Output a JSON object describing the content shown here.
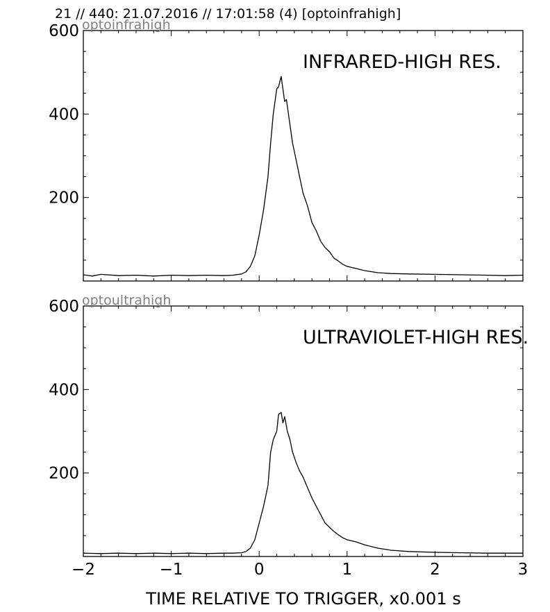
{
  "header": {
    "text": "21 // 440:   21.07.2016 // 17:01:58 (4)  [optoinfrahigh]"
  },
  "xlabel": "TIME RELATIVE TO TRIGGER,   x0.001 s",
  "chart_data": [
    {
      "type": "line",
      "id_label": "optoinfrahigh",
      "title": "INFRARED-HIGH RES.",
      "xlim": [
        -2,
        3
      ],
      "ylim": [
        0,
        600
      ],
      "yticks": [
        200,
        400,
        600
      ],
      "xticks": [
        -2,
        -1,
        0,
        1,
        2,
        3
      ],
      "series": [
        {
          "x": [
            -2.0,
            -1.9,
            -1.8,
            -1.6,
            -1.4,
            -1.2,
            -1.0,
            -0.8,
            -0.6,
            -0.4,
            -0.3,
            -0.2,
            -0.15,
            -0.1,
            -0.05,
            0.0,
            0.05,
            0.1,
            0.13,
            0.16,
            0.2,
            0.22,
            0.25,
            0.27,
            0.29,
            0.31,
            0.34,
            0.38,
            0.42,
            0.46,
            0.5,
            0.55,
            0.6,
            0.65,
            0.7,
            0.75,
            0.8,
            0.85,
            0.9,
            0.95,
            1.0,
            1.1,
            1.2,
            1.35,
            1.5,
            1.7,
            2.0,
            2.3,
            2.6,
            2.8,
            3.0
          ],
          "y": [
            15,
            12,
            16,
            13,
            14,
            12,
            14,
            13,
            14,
            13,
            14,
            17,
            22,
            35,
            60,
            110,
            170,
            250,
            330,
            400,
            460,
            465,
            490,
            460,
            430,
            435,
            390,
            330,
            290,
            250,
            210,
            180,
            140,
            120,
            95,
            80,
            70,
            55,
            48,
            40,
            35,
            30,
            25,
            20,
            18,
            17,
            16,
            15,
            14,
            13,
            14
          ]
        }
      ]
    },
    {
      "type": "line",
      "id_label": "optoultrahigh",
      "title": "ULTRAVIOLET-HIGH RES.",
      "xlim": [
        -2,
        3
      ],
      "ylim": [
        0,
        600
      ],
      "yticks": [
        200,
        400,
        600
      ],
      "xticks": [
        -2,
        -1,
        0,
        1,
        2,
        3
      ],
      "series": [
        {
          "x": [
            -2.0,
            -1.8,
            -1.6,
            -1.4,
            -1.2,
            -1.0,
            -0.8,
            -0.6,
            -0.4,
            -0.3,
            -0.2,
            -0.15,
            -0.1,
            -0.05,
            0.0,
            0.05,
            0.1,
            0.13,
            0.16,
            0.2,
            0.22,
            0.25,
            0.27,
            0.29,
            0.32,
            0.35,
            0.38,
            0.42,
            0.46,
            0.5,
            0.55,
            0.6,
            0.65,
            0.7,
            0.75,
            0.8,
            0.85,
            0.9,
            0.95,
            1.0,
            1.1,
            1.2,
            1.35,
            1.5,
            1.7,
            2.0,
            2.3,
            2.6,
            2.8,
            3.0
          ],
          "y": [
            8,
            7,
            8,
            7,
            8,
            7,
            8,
            7,
            8,
            8,
            9,
            12,
            20,
            40,
            80,
            120,
            170,
            250,
            280,
            300,
            340,
            345,
            320,
            335,
            300,
            280,
            250,
            225,
            205,
            190,
            165,
            140,
            120,
            100,
            80,
            70,
            60,
            52,
            45,
            40,
            35,
            28,
            20,
            15,
            12,
            10,
            9,
            8,
            8,
            8
          ]
        }
      ]
    }
  ]
}
